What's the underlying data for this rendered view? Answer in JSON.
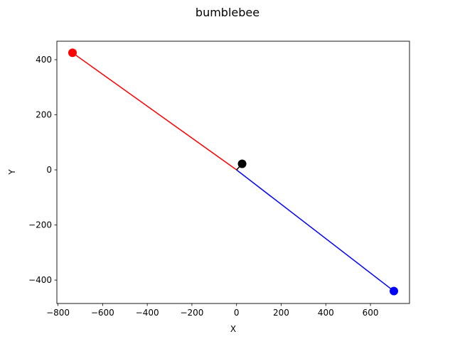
{
  "figure": {
    "title": "bumblebee"
  },
  "chart_data": {
    "type": "line",
    "title": "bumblebee",
    "xlabel": "X",
    "ylabel": "Y",
    "xlim": [
      -805,
      775
    ],
    "ylim": [
      -485,
      467
    ],
    "grid": false,
    "x_ticks": [
      -800,
      -600,
      -400,
      -200,
      0,
      200,
      400,
      600
    ],
    "x_tick_labels": [
      "−800",
      "−600",
      "−400",
      "−200",
      "0",
      "200",
      "400",
      "600"
    ],
    "y_ticks": [
      400,
      200,
      0,
      -200,
      -400
    ],
    "y_tick_labels": [
      "400",
      "200",
      "0",
      "−200",
      "−400"
    ],
    "series": [
      {
        "color": "#ff0000",
        "x": [
          0,
          -735
        ],
        "y": [
          0,
          425
        ]
      },
      {
        "color": "#0000ff",
        "x": [
          0,
          705
        ],
        "y": [
          0,
          -440
        ]
      },
      {
        "color": "#000000",
        "x": [
          0,
          25
        ],
        "y": [
          0,
          22
        ]
      }
    ],
    "points": [
      {
        "color": "#ff0000",
        "x": -735,
        "y": 425
      },
      {
        "color": "#0000ff",
        "x": 705,
        "y": -440
      },
      {
        "color": "#000000",
        "x": 25,
        "y": 22
      }
    ]
  }
}
